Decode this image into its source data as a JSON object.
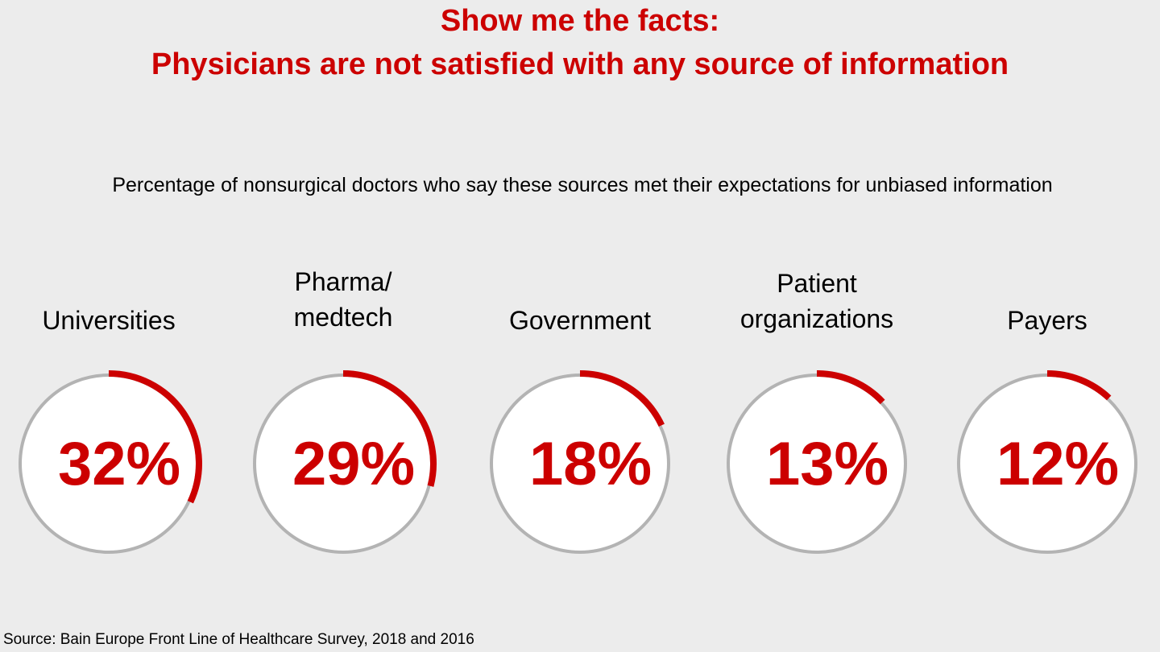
{
  "chart_data": {
    "type": "donut",
    "title_lines": [
      "Show me the facts:",
      "Physicians are not satisfied with any source of information"
    ],
    "subtitle": "Percentage of nonsurgical doctors who say these sources met their expectations for unbiased information",
    "categories": [
      [
        "Universities"
      ],
      [
        "Pharma/",
        "medtech"
      ],
      [
        "Government"
      ],
      [
        "Patient",
        "organizations"
      ],
      [
        "Payers"
      ]
    ],
    "values": [
      32,
      29,
      18,
      13,
      12
    ],
    "value_labels": [
      "32%",
      "29%",
      "18%",
      "13%",
      "12%"
    ],
    "range": [
      0,
      100
    ],
    "colors": {
      "accent": "#cc0000",
      "track": "#b3b3b3",
      "fill": "#ffffff",
      "background": "#ececec"
    }
  },
  "source": "Source: Bain Europe Front Line of Healthcare Survey, 2018 and 2016"
}
